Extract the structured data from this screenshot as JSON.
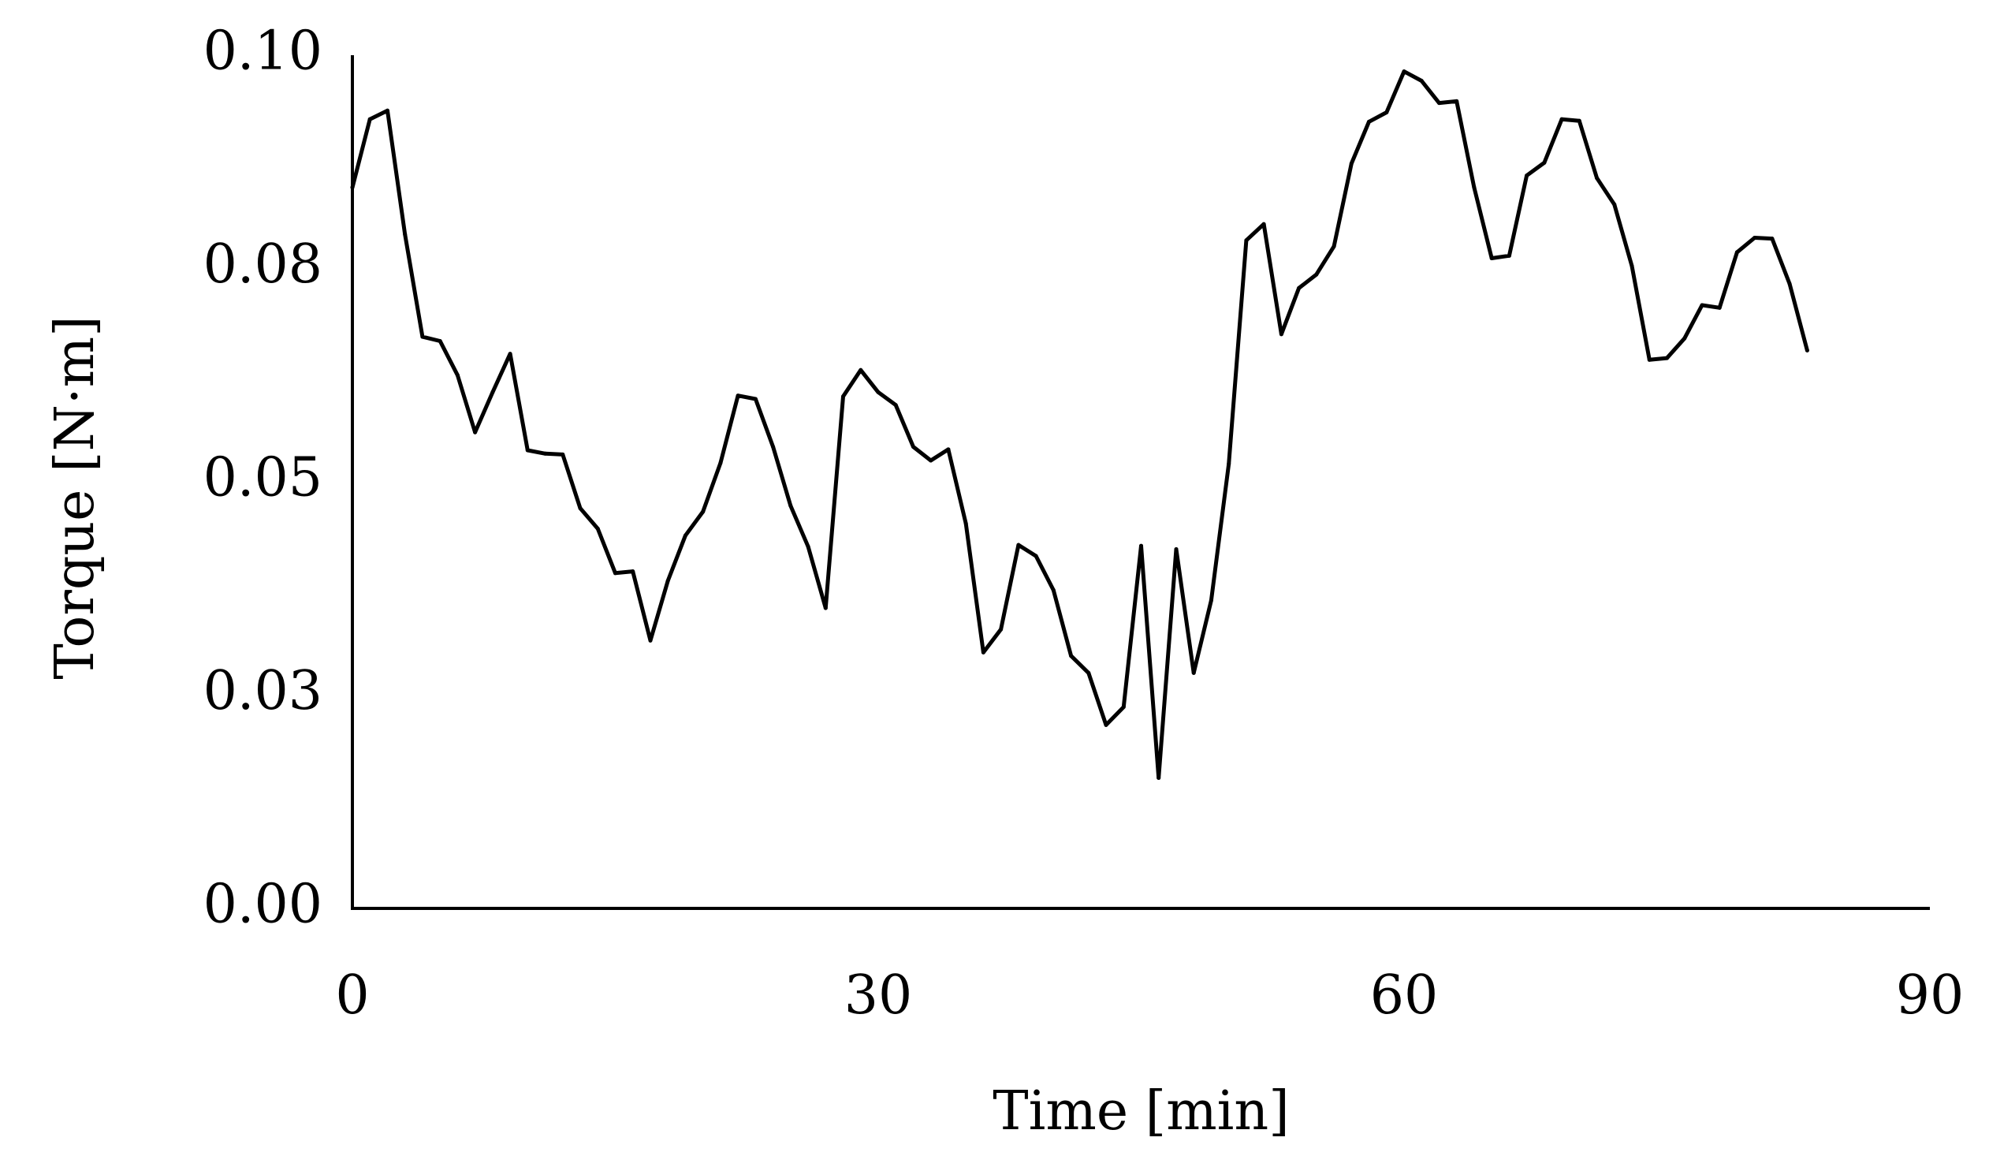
{
  "chart_data": {
    "type": "line",
    "title": "",
    "xlabel": "Time [min]",
    "ylabel": "Torque [N·m]",
    "xlim": [
      0,
      90
    ],
    "ylim": [
      0,
      0.1
    ],
    "xticks": [
      0,
      30,
      60,
      90
    ],
    "xtick_labels": [
      "0",
      "30",
      "60",
      "90"
    ],
    "yticks": [
      0,
      0.025,
      0.05,
      0.075,
      0.1
    ],
    "ytick_labels": [
      "0.00",
      "0.03",
      "0.05",
      "0.08",
      "0.10"
    ],
    "grid": false,
    "legend": "none",
    "line_color": "#000000",
    "series": [
      {
        "x": [
          0,
          1,
          2,
          3,
          4,
          5,
          6,
          7,
          8,
          9,
          10,
          11,
          12,
          13,
          14,
          15,
          16,
          17,
          18,
          19,
          20,
          21,
          22,
          23,
          24,
          25,
          26,
          27,
          28,
          29,
          30,
          31,
          32,
          33,
          34,
          35,
          36,
          37,
          38,
          39,
          40,
          41,
          42,
          43,
          44,
          45,
          46,
          47,
          48,
          49,
          50,
          51,
          52,
          53,
          54,
          55,
          56,
          57,
          58,
          59,
          60,
          61,
          62,
          63,
          64,
          65,
          66,
          67,
          68,
          69,
          70,
          71,
          72,
          73,
          74,
          75,
          76,
          77,
          78,
          79,
          80,
          81,
          82,
          83
        ],
        "y": [
          0.0845,
          0.0925,
          0.0935,
          0.079,
          0.067,
          0.0665,
          0.0625,
          0.0558,
          0.0605,
          0.065,
          0.0537,
          0.0533,
          0.0532,
          0.0469,
          0.0445,
          0.0393,
          0.0395,
          0.0314,
          0.0384,
          0.0437,
          0.0465,
          0.0522,
          0.0601,
          0.0597,
          0.0541,
          0.0472,
          0.0424,
          0.0352,
          0.06,
          0.0631,
          0.0605,
          0.059,
          0.0541,
          0.0525,
          0.0538,
          0.0451,
          0.03,
          0.0327,
          0.0426,
          0.0413,
          0.0373,
          0.0296,
          0.0276,
          0.0215,
          0.0236,
          0.0425,
          0.0153,
          0.0421,
          0.0276,
          0.0361,
          0.0521,
          0.0783,
          0.0802,
          0.0673,
          0.0727,
          0.0743,
          0.0776,
          0.0873,
          0.0922,
          0.0933,
          0.0981,
          0.097,
          0.0944,
          0.0946,
          0.0845,
          0.0762,
          0.0765,
          0.0859,
          0.0874,
          0.0925,
          0.0923,
          0.0856,
          0.0825,
          0.0753,
          0.0643,
          0.0645,
          0.0668,
          0.0707,
          0.0704,
          0.0769,
          0.0786,
          0.0785,
          0.0732,
          0.0654
        ]
      }
    ]
  }
}
